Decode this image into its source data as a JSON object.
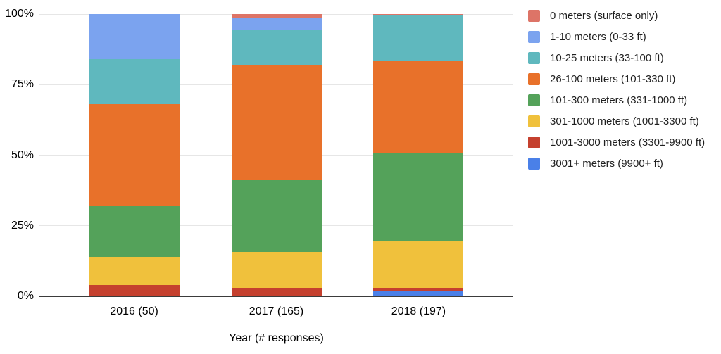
{
  "chart_data": {
    "type": "bar",
    "variant": "stacked-100-percent",
    "title": "",
    "xlabel": "Year (# responses)",
    "ylabel": "",
    "ylim": [
      0,
      100
    ],
    "grid": true,
    "legend_position": "right",
    "yticks": [
      "100%",
      "75%",
      "50%",
      "25%",
      "0%"
    ],
    "ytick_values": [
      100,
      75,
      50,
      25,
      0
    ],
    "categories": [
      "2016 (50)",
      "2017 (165)",
      "2018 (197)"
    ],
    "series": [
      {
        "name": "0 meters (surface only)",
        "color": "#DD7467",
        "values": [
          0,
          1.2,
          0.5
        ]
      },
      {
        "name": "1-10 meters (0-33 ft)",
        "color": "#7BA3EF",
        "values": [
          16,
          4.2,
          0
        ]
      },
      {
        "name": "10-25 meters (33-100 ft)",
        "color": "#5FB8BE",
        "values": [
          16,
          12.7,
          16.2
        ]
      },
      {
        "name": "26-100 meters (101-330 ft)",
        "color": "#E8712A",
        "values": [
          36,
          40.6,
          32.8
        ]
      },
      {
        "name": "101-300 meters (331-1000 ft)",
        "color": "#54A25A",
        "values": [
          18,
          25.5,
          30.8
        ]
      },
      {
        "name": "301-1000 meters (1001-3300 ft)",
        "color": "#F0C13C",
        "values": [
          10,
          12.7,
          16.7
        ]
      },
      {
        "name": "1001-3000 meters (3301-9900 ft)",
        "color": "#C5402E",
        "values": [
          4,
          3.0,
          1.0
        ]
      },
      {
        "name": "3001+ meters (9900+ ft)",
        "color": "#4A80E8",
        "values": [
          0,
          0,
          2.0
        ]
      }
    ]
  }
}
